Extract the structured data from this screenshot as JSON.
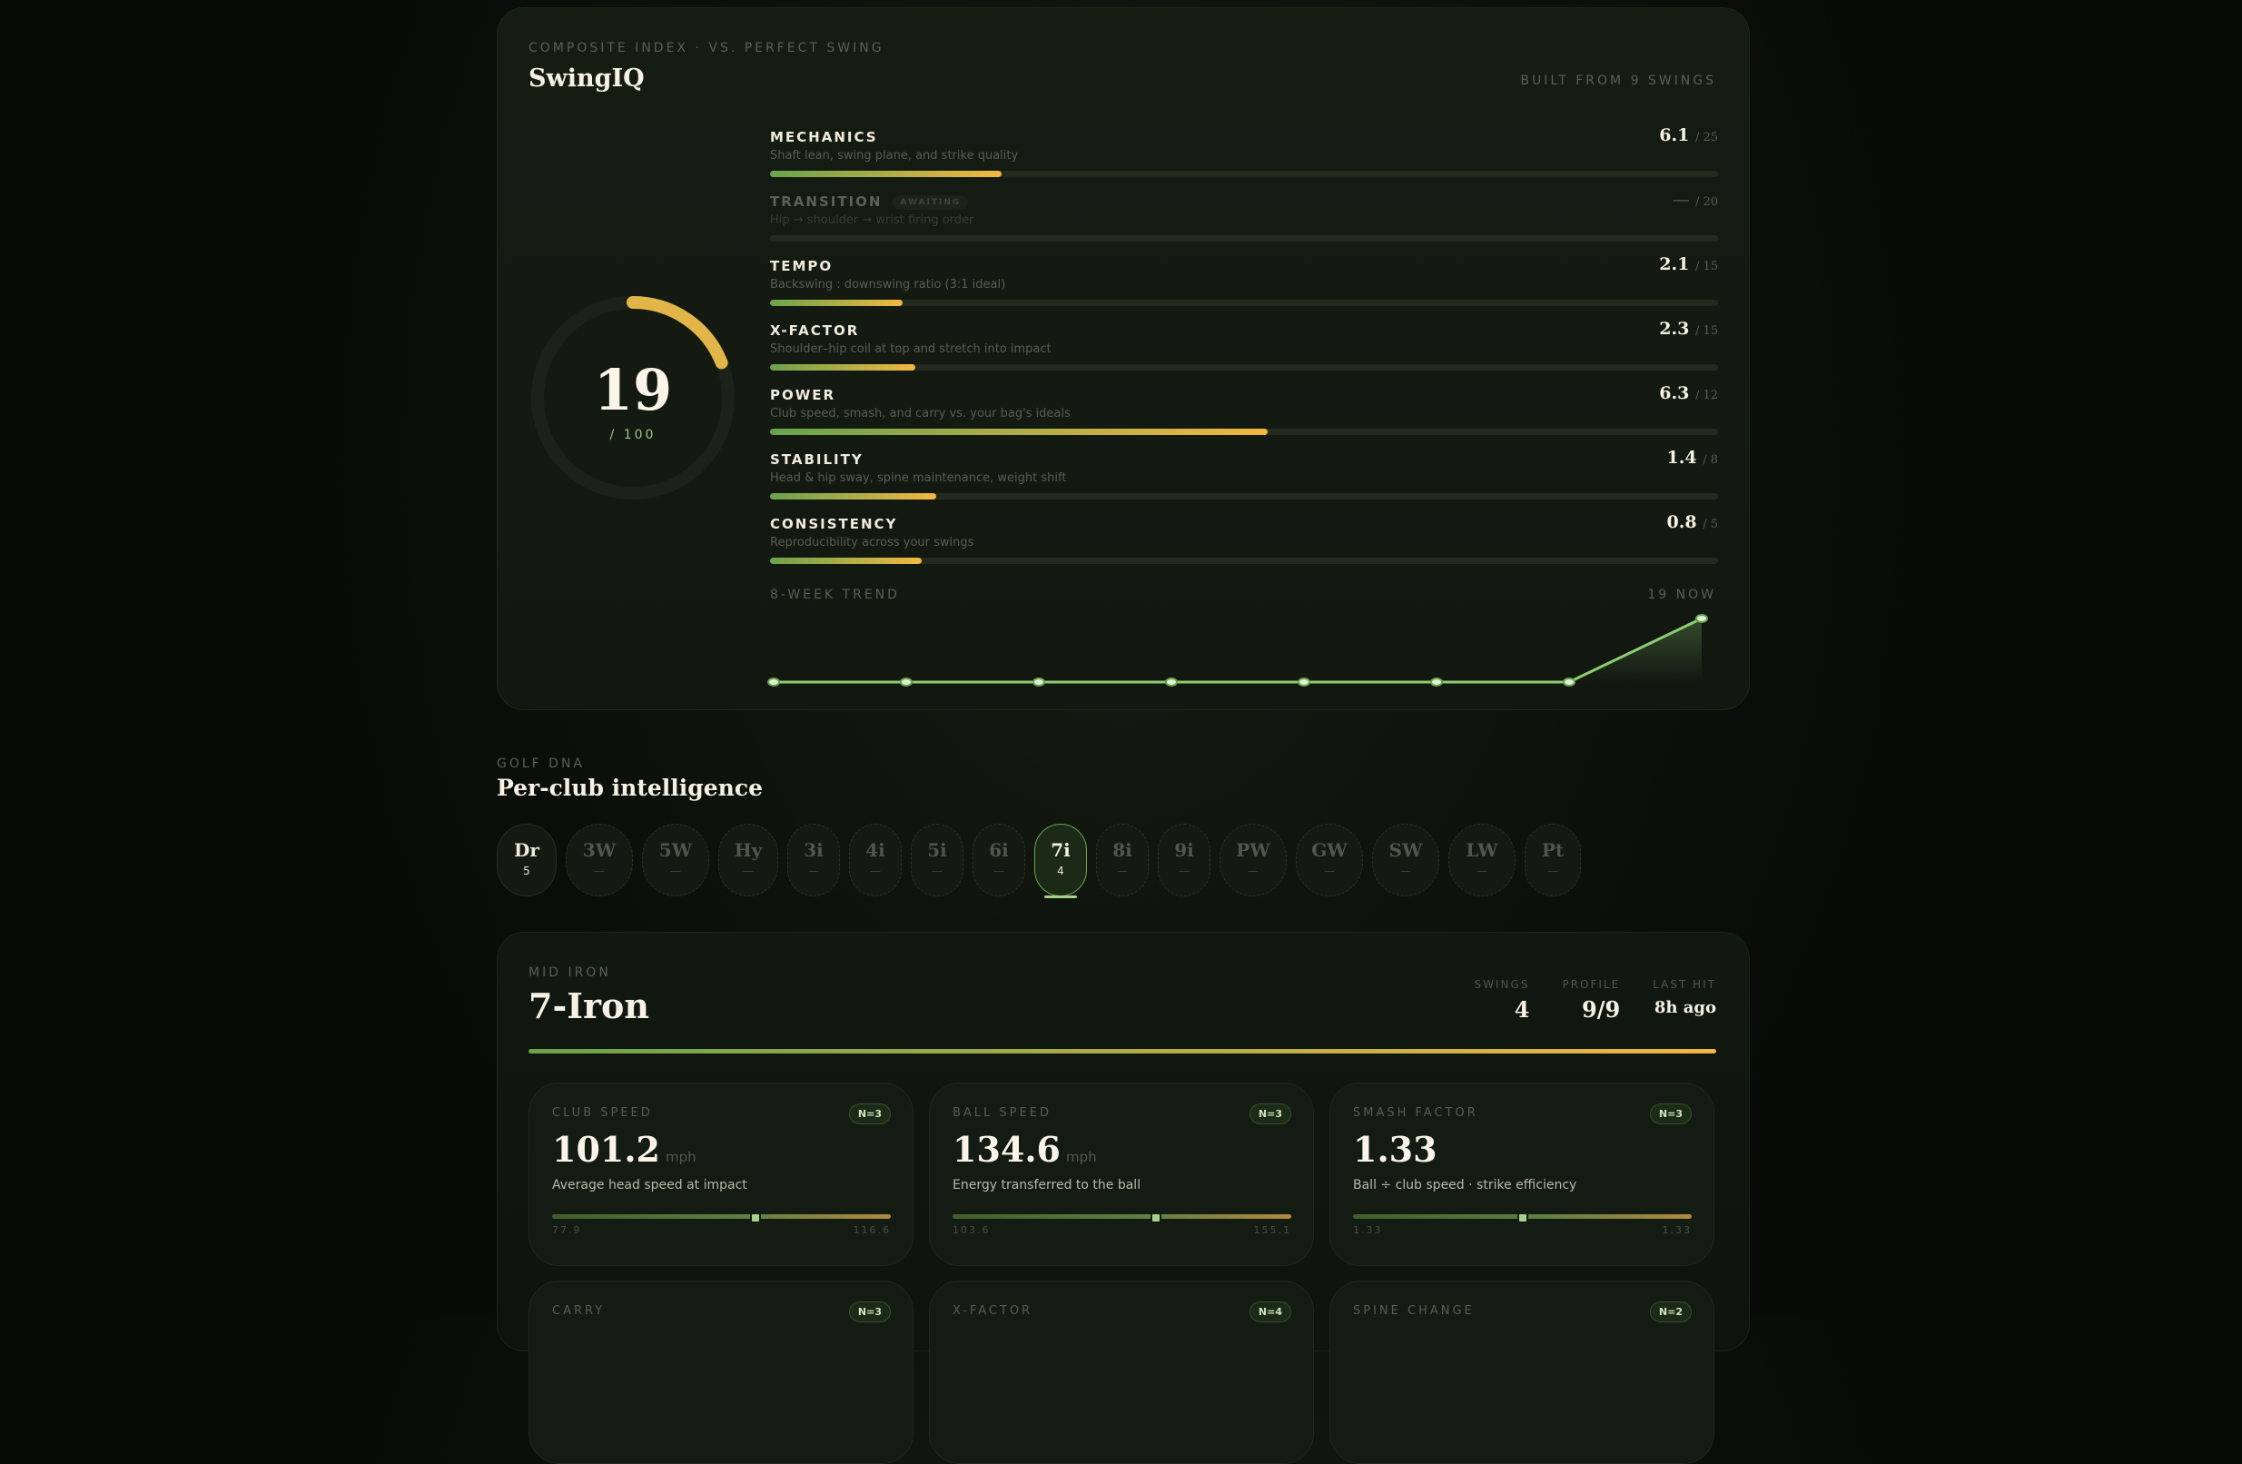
{
  "swingiq": {
    "eyebrow": "COMPOSITE INDEX · VS. PERFECT SWING",
    "title": "SwingIQ",
    "built_from": "BUILT FROM 9 SWINGS",
    "score": "19",
    "score_max": "/ 100",
    "score_pct": 19,
    "colors": {
      "arc": "#e2b548",
      "bar_start": "#6aa34d",
      "bar_end": "#f2b742",
      "trend_line": "#8ccc72"
    },
    "components": [
      {
        "label": "MECHANICS",
        "desc": "Shaft lean, swing plane, and strike quality",
        "score": "6.1",
        "max": "/ 25",
        "pct": 24.4,
        "status": ""
      },
      {
        "label": "TRANSITION",
        "desc": "Hip → shoulder → wrist firing order",
        "score": "—",
        "max": "/ 20",
        "pct": 0,
        "status": "AWAITING"
      },
      {
        "label": "TEMPO",
        "desc": "Backswing : downswing ratio (3:1 ideal)",
        "score": "2.1",
        "max": "/ 15",
        "pct": 14,
        "status": ""
      },
      {
        "label": "X-FACTOR",
        "desc": "Shoulder–hip coil at top and stretch into impact",
        "score": "2.3",
        "max": "/ 15",
        "pct": 15.3,
        "status": ""
      },
      {
        "label": "POWER",
        "desc": "Club speed, smash, and carry vs. your bag's ideals",
        "score": "6.3",
        "max": "/ 12",
        "pct": 52.5,
        "status": ""
      },
      {
        "label": "STABILITY",
        "desc": "Head & hip sway, spine maintenance, weight shift",
        "score": "1.4",
        "max": "/ 8",
        "pct": 17.5,
        "status": ""
      },
      {
        "label": "CONSISTENCY",
        "desc": "Reproducibility across your swings",
        "score": "0.8",
        "max": "/ 5",
        "pct": 16,
        "status": ""
      }
    ],
    "trend": {
      "label": "8-WEEK TREND",
      "now": "19 NOW",
      "values": [
        0,
        0,
        0,
        0,
        0,
        0,
        0,
        19
      ]
    }
  },
  "golf_dna": {
    "eyebrow": "GOLF DNA",
    "title": "Per-club intelligence",
    "clubs": [
      {
        "name": "Dr",
        "count": "5",
        "state": "has"
      },
      {
        "name": "3W",
        "count": "—",
        "state": "empty"
      },
      {
        "name": "5W",
        "count": "—",
        "state": "empty"
      },
      {
        "name": "Hy",
        "count": "—",
        "state": "empty"
      },
      {
        "name": "3i",
        "count": "—",
        "state": "empty"
      },
      {
        "name": "4i",
        "count": "—",
        "state": "empty"
      },
      {
        "name": "5i",
        "count": "—",
        "state": "empty"
      },
      {
        "name": "6i",
        "count": "—",
        "state": "empty"
      },
      {
        "name": "7i",
        "count": "4",
        "state": "active"
      },
      {
        "name": "8i",
        "count": "—",
        "state": "empty"
      },
      {
        "name": "9i",
        "count": "—",
        "state": "empty"
      },
      {
        "name": "PW",
        "count": "—",
        "state": "empty"
      },
      {
        "name": "GW",
        "count": "—",
        "state": "empty"
      },
      {
        "name": "SW",
        "count": "—",
        "state": "empty"
      },
      {
        "name": "LW",
        "count": "—",
        "state": "empty"
      },
      {
        "name": "Pt",
        "count": "—",
        "state": "empty"
      }
    ]
  },
  "club_detail": {
    "eyebrow": "MID IRON",
    "title": "7-Iron",
    "stats": [
      {
        "label": "SWINGS",
        "value": "4"
      },
      {
        "label": "PROFILE",
        "value": "9/9"
      },
      {
        "label": "LAST HIT",
        "value": "8h ago"
      }
    ],
    "metrics": [
      {
        "label": "CLUB SPEED",
        "badge": "N=3",
        "value": "101.2",
        "unit": "mph",
        "desc": "Average head speed at impact",
        "min": "77.9",
        "max": "116.6",
        "marker_pct": 60
      },
      {
        "label": "BALL SPEED",
        "badge": "N=3",
        "value": "134.6",
        "unit": "mph",
        "desc": "Energy transferred to the ball",
        "min": "103.6",
        "max": "155.1",
        "marker_pct": 60
      },
      {
        "label": "SMASH FACTOR",
        "badge": "N=3",
        "value": "1.33",
        "unit": "",
        "desc": "Ball ÷ club speed · strike efficiency",
        "min": "1.33",
        "max": "1.33",
        "marker_pct": 50
      },
      {
        "label": "CARRY",
        "badge": "N=3",
        "value": "",
        "unit": "",
        "desc": "",
        "min": "",
        "max": "",
        "marker_pct": 50
      },
      {
        "label": "X-FACTOR",
        "badge": "N=4",
        "value": "",
        "unit": "",
        "desc": "",
        "min": "",
        "max": "",
        "marker_pct": 50
      },
      {
        "label": "SPINE CHANGE",
        "badge": "N=2",
        "value": "",
        "unit": "",
        "desc": "",
        "min": "",
        "max": "",
        "marker_pct": 50
      }
    ]
  }
}
